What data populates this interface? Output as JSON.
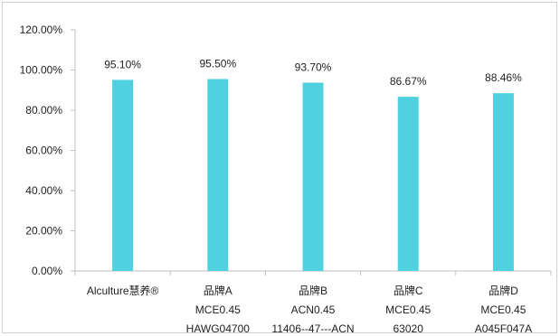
{
  "chart_data": {
    "type": "bar",
    "title": "",
    "xlabel": "",
    "ylabel": "",
    "categories": [
      [
        "Alculture慧养®"
      ],
      [
        "品牌A",
        "MCE0.45",
        "HAWG04700"
      ],
      [
        "品牌B",
        "ACN0.45",
        "11406--47---ACN"
      ],
      [
        "品牌C",
        "MCE0.45",
        "63020"
      ],
      [
        "品牌D",
        "MCE0.45",
        "A045F047A"
      ]
    ],
    "values": [
      95.1,
      95.5,
      93.7,
      86.67,
      88.46
    ],
    "data_labels": [
      "95.10%",
      "95.50%",
      "93.70%",
      "86.67%",
      "88.46%"
    ],
    "yticks": [
      0,
      20,
      40,
      60,
      80,
      100,
      120
    ],
    "ytick_labels": [
      "0.00%",
      "20.00%",
      "40.00%",
      "60.00%",
      "80.00%",
      "100.00%",
      "120.00%"
    ],
    "ylim": [
      0,
      120
    ],
    "grid": false,
    "legend": "none",
    "bar_color": "#4fd1e0",
    "axis_color": "#bfbfbf"
  }
}
